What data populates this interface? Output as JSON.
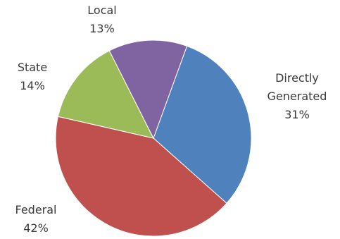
{
  "chart_data": {
    "type": "pie",
    "title": "",
    "slices": [
      {
        "label": "Directly Generated",
        "value": 31,
        "display": "31%",
        "color": "#4F81BD"
      },
      {
        "label": "Federal",
        "value": 42,
        "display": "42%",
        "color": "#C0504D"
      },
      {
        "label": "State",
        "value": 14,
        "display": "14%",
        "color": "#9BBB59"
      },
      {
        "label": "Local",
        "value": 13,
        "display": "13%",
        "color": "#8064A2"
      }
    ],
    "start_angle_deg": 20,
    "direction": "clockwise",
    "legend": "none"
  },
  "labels": {
    "local": {
      "name": "Local",
      "pct": "13%"
    },
    "state": {
      "name": "State",
      "pct": "14%"
    },
    "direct": {
      "line1": "Directly",
      "line2": "Generated",
      "pct": "31%"
    },
    "federal": {
      "name": "Federal",
      "pct": "42%"
    }
  }
}
